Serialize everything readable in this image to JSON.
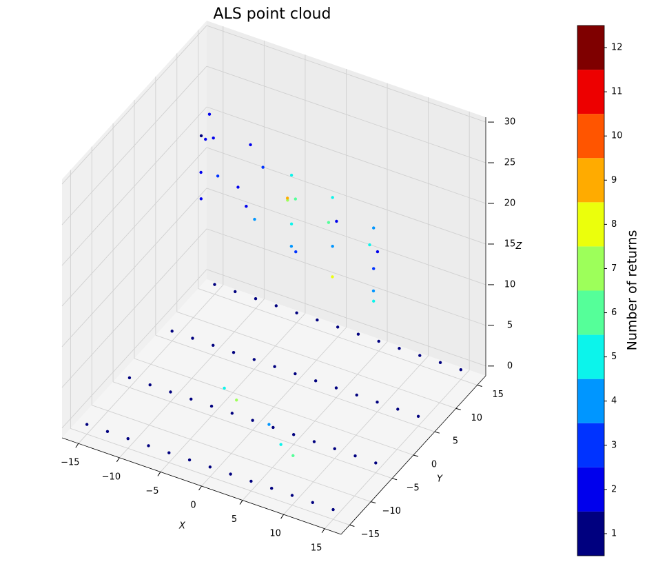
{
  "chart_data": {
    "type": "scatter3d",
    "title": "ALS point cloud",
    "xlabel": "X",
    "ylabel": "Y",
    "zlabel": "Z",
    "xlim": [
      -17,
      17
    ],
    "ylim": [
      -17,
      17
    ],
    "zlim": [
      -1.2,
      30.6
    ],
    "xticks": [
      {
        "value": -15,
        "label": "−15"
      },
      {
        "value": -10,
        "label": "−10"
      },
      {
        "value": -5,
        "label": "−5"
      },
      0,
      5,
      10,
      15
    ],
    "yticks": [
      {
        "value": -15,
        "label": "−15"
      },
      {
        "value": -10,
        "label": "−10"
      },
      {
        "value": -5,
        "label": "−5"
      },
      0,
      5,
      10,
      15
    ],
    "zticks": [
      0,
      5,
      10,
      15,
      20,
      25,
      30
    ],
    "grid": true,
    "points": {
      "x": [
        -15,
        -15,
        -15,
        -15,
        -12.5,
        -12.5,
        -12.5,
        -12.5,
        -10,
        -10,
        -10,
        -10,
        -7.5,
        -7.5,
        -7.5,
        -7.5,
        -5,
        -5,
        -5,
        -5,
        -2.5,
        -2.5,
        -2.5,
        -2.5,
        0,
        0,
        0,
        0,
        2.5,
        2.5,
        2.5,
        2.5,
        5,
        5,
        5,
        5,
        7.5,
        7.5,
        7.5,
        7.5,
        10,
        10,
        10,
        10,
        12.5,
        12.5,
        12.5,
        12.5,
        15,
        15,
        15,
        15,
        -12,
        -11,
        -13,
        -12,
        -11.5,
        -12.5,
        -13,
        -7,
        -6,
        -8,
        -7,
        -6.5,
        -2,
        -1,
        -3,
        -2,
        -1.5,
        -2.5,
        -2,
        3,
        4,
        2,
        3,
        3.5,
        8,
        9,
        7,
        8,
        8.5,
        8,
        -5,
        -3,
        5,
        7,
        2
      ],
      "y": [
        -15,
        -5,
        5,
        15,
        -15,
        -5,
        5,
        15,
        -15,
        -5,
        5,
        15,
        -15,
        -5,
        5,
        15,
        -15,
        -5,
        5,
        15,
        -15,
        -5,
        5,
        15,
        -15,
        -5,
        5,
        15,
        -15,
        -5,
        5,
        15,
        -15,
        -5,
        5,
        15,
        -15,
        -5,
        5,
        15,
        -15,
        -5,
        5,
        15,
        -15,
        -5,
        5,
        15,
        -15,
        -5,
        5,
        15,
        8,
        7,
        9,
        6,
        9,
        7,
        8,
        8,
        9,
        7,
        7,
        8,
        8,
        7,
        9,
        8,
        7,
        8,
        9,
        8,
        7,
        9,
        8,
        7,
        8,
        7,
        9,
        8,
        7,
        8,
        -2,
        -3,
        -8,
        -9,
        -5
      ],
      "z": [
        0,
        0,
        0,
        0,
        0,
        0,
        0,
        0,
        0,
        0,
        0,
        0,
        0,
        0,
        0,
        0,
        0,
        0,
        0,
        0,
        0,
        0,
        0,
        0,
        0,
        0,
        0,
        0,
        0,
        0,
        0,
        0,
        0,
        0,
        0,
        0,
        0,
        0,
        0,
        0,
        0,
        0,
        0,
        0,
        0,
        0,
        0,
        0,
        0,
        0,
        0,
        0,
        26,
        24,
        22,
        20,
        18,
        16,
        23,
        24,
        21,
        19,
        17,
        15,
        22,
        20,
        18,
        16,
        14,
        19,
        12,
        21,
        19,
        17,
        15,
        12,
        19,
        17,
        16,
        14,
        12,
        10,
        0.5,
        0.3,
        0.5,
        0.4,
        0.2
      ],
      "returns": [
        1,
        1,
        1,
        1,
        1,
        1,
        1,
        1,
        1,
        1,
        1,
        1,
        1,
        1,
        1,
        1,
        1,
        1,
        1,
        1,
        1,
        1,
        1,
        1,
        1,
        1,
        1,
        1,
        1,
        1,
        1,
        1,
        1,
        1,
        1,
        1,
        1,
        1,
        1,
        1,
        1,
        1,
        1,
        1,
        1,
        1,
        1,
        1,
        1,
        1,
        1,
        1,
        2,
        2,
        2,
        2,
        3,
        2,
        1,
        2,
        3,
        2,
        2,
        4,
        5,
        6,
        7,
        5,
        4,
        9,
        3,
        5,
        2,
        6,
        4,
        8,
        4,
        2,
        5,
        3,
        4,
        5,
        5,
        7,
        5,
        6,
        4
      ]
    },
    "colorbar": {
      "label": "Number of returns",
      "clim": [
        0.5,
        12.5
      ],
      "ticks": [
        1,
        2,
        3,
        4,
        5,
        6,
        7,
        8,
        9,
        10,
        11,
        12
      ],
      "colors": [
        "#00007f",
        "#0000ed",
        "#0033ff",
        "#0096ff",
        "#0cf4eb",
        "#55ff99",
        "#9dff5a",
        "#ebff0c",
        "#ffab00",
        "#ff5500",
        "#ed0000",
        "#7f0000"
      ]
    }
  }
}
